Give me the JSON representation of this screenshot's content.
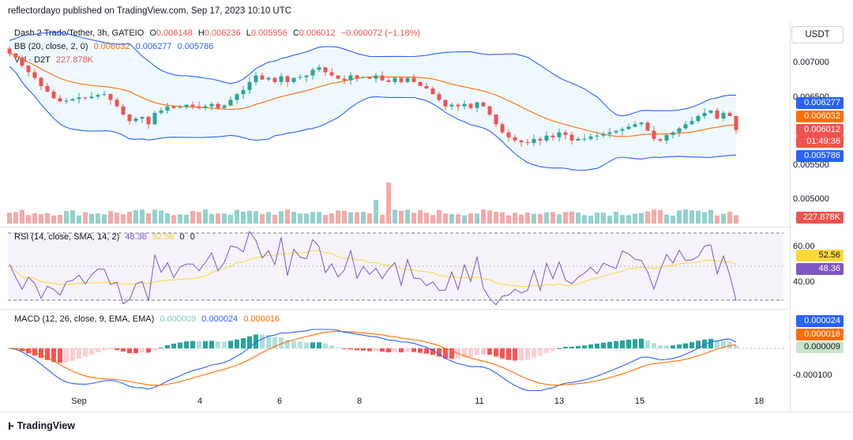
{
  "header": {
    "published_by": "reflectordayo published on TradingView.com, Sep 17, 2023 10:10 UTC"
  },
  "currency_button": "USDT",
  "symbol_line": {
    "name": "Dash 2 Trade/Tether, 3h, GATEIO",
    "o_label": "O",
    "o_value": "0.006148",
    "h_label": "H",
    "h_value": "0.006236",
    "l_label": "L",
    "l_value": "0.005956",
    "c_label": "C",
    "c_value": "0.006012",
    "change": "−0.000072 (−1.18%)"
  },
  "bb_line": {
    "label": "BB (20, close, 2, 0)",
    "basis": "0.006032",
    "upper": "0.006277",
    "lower": "0.005786"
  },
  "vol_line": {
    "label": "Vol · D2T",
    "value": "227.878K"
  },
  "rsi_line": {
    "label": "RSI (14, close, SMA, 14, 2)",
    "rsi": "48.36",
    "sma": "52.56",
    "z1": "0",
    "z2": "0"
  },
  "macd_line": {
    "label": "MACD (12, 26, close, 9, EMA, EMA)",
    "hist": "0.000009",
    "macd": "0.000024",
    "signal": "0.000016"
  },
  "price_axis": {
    "ticks": [
      "0.007000",
      "0.006500",
      "0.005500",
      "0.005000"
    ]
  },
  "price_badges": {
    "upper": "0.006277",
    "basis": "0.006032",
    "close": "0.006012",
    "timer": "01:49:36",
    "lower": "0.005786",
    "volume": "227.878K"
  },
  "rsi_axis": {
    "ticks": [
      "60.00",
      "40.00"
    ],
    "sma_badge": "52.56",
    "rsi_badge": "48.36"
  },
  "macd_axis": {
    "ticks": [
      "-0.000100"
    ],
    "macd_badge": "0.000024",
    "signal_badge": "0.000016",
    "hist_badge": "0.000009"
  },
  "time_axis": {
    "ticks": [
      "Sep",
      "4",
      "6",
      "8",
      "11",
      "13",
      "15",
      "18"
    ]
  },
  "footer": {
    "brand": "TradingView"
  },
  "colors": {
    "up": "#26a69a",
    "down": "#ef5350",
    "bb": "#2962ff",
    "basis": "#ff6d00",
    "rsi": "#7e57c2",
    "rsi_sma": "#fdd835",
    "macd": "#2962ff",
    "signal": "#ff6d00"
  },
  "chart_data": {
    "type": "candlestick",
    "ylim": [
      0.0055,
      0.0072
    ],
    "close_series": [
      0.00695,
      0.0069,
      0.0068,
      0.00672,
      0.00665,
      0.00655,
      0.00648,
      0.0064,
      0.00636,
      0.00637,
      0.00639,
      0.00641,
      0.0064,
      0.00642,
      0.00644,
      0.00645,
      0.00638,
      0.0063,
      0.0062,
      0.00612,
      0.00615,
      0.00617,
      0.00608,
      0.00622,
      0.00625,
      0.0063,
      0.00628,
      0.00629,
      0.00632,
      0.0063,
      0.00628,
      0.0063,
      0.00633,
      0.00628,
      0.00631,
      0.00638,
      0.00645,
      0.0065,
      0.0066,
      0.00668,
      0.00663,
      0.00665,
      0.0066,
      0.00667,
      0.0066,
      0.00665,
      0.00666,
      0.00668,
      0.00675,
      0.00678,
      0.00672,
      0.00668,
      0.00664,
      0.00662,
      0.00668,
      0.00665,
      0.00666,
      0.00664,
      0.00668,
      0.00662,
      0.0066,
      0.00665,
      0.0066,
      0.00665,
      0.0066,
      0.00655,
      0.00652,
      0.00645,
      0.00638,
      0.0063,
      0.00632,
      0.0063,
      0.00633,
      0.00628,
      0.00635,
      0.0063,
      0.0062,
      0.00608,
      0.00598,
      0.00592,
      0.00588,
      0.00586,
      0.00585,
      0.0059,
      0.00588,
      0.00594,
      0.00592,
      0.00598,
      0.00595,
      0.00588,
      0.0059,
      0.0059,
      0.00593,
      0.00594,
      0.00596,
      0.00598,
      0.006,
      0.00602,
      0.00605,
      0.00608,
      0.0061,
      0.006,
      0.0059,
      0.00588,
      0.00595,
      0.00598,
      0.00603,
      0.00608,
      0.00612,
      0.00618,
      0.00622,
      0.00625,
      0.00615,
      0.00622,
      0.00618,
      0.00601
    ],
    "volume_max_index": [
      60,
      58
    ]
  }
}
